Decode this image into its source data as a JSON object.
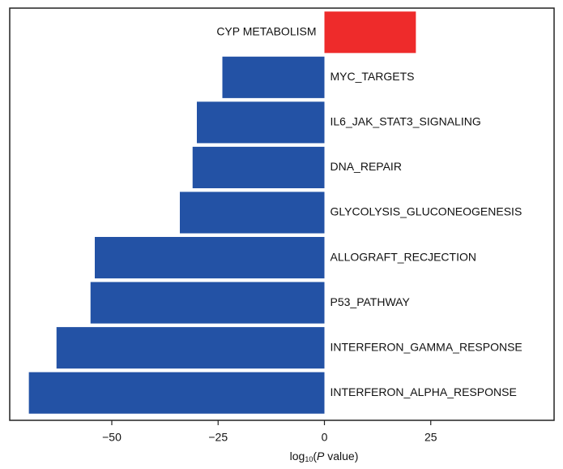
{
  "chart_data": {
    "type": "bar",
    "orientation": "horizontal",
    "categories": [
      "CYP METABOLISM",
      "MYC_TARGETS",
      "IL6_JAK_STAT3_SIGNALING",
      "DNA_REPAIR",
      "GLYCOLYSIS_GLUCONEOGENESIS",
      "ALLOGRAFT_RECJECTION",
      "P53_PATHWAY",
      "INTERFERON_GAMMA_RESPONSE",
      "INTERFERON_ALPHA_RESPONSE"
    ],
    "values": [
      21.5,
      -24,
      -30,
      -31,
      -34,
      -54,
      -55,
      -63,
      -69.5
    ],
    "positive_color": "#ee2b2b",
    "negative_color": "#2352a5",
    "xlim": [
      -74,
      54
    ],
    "xticks": [
      {
        "value": -50,
        "label": "−50"
      },
      {
        "value": -25,
        "label": "−25"
      },
      0,
      25
    ],
    "x_label": {
      "base": "log",
      "subscript": "10",
      "open": "(",
      "italic": "P",
      "rest": " value)"
    },
    "grid": false
  }
}
